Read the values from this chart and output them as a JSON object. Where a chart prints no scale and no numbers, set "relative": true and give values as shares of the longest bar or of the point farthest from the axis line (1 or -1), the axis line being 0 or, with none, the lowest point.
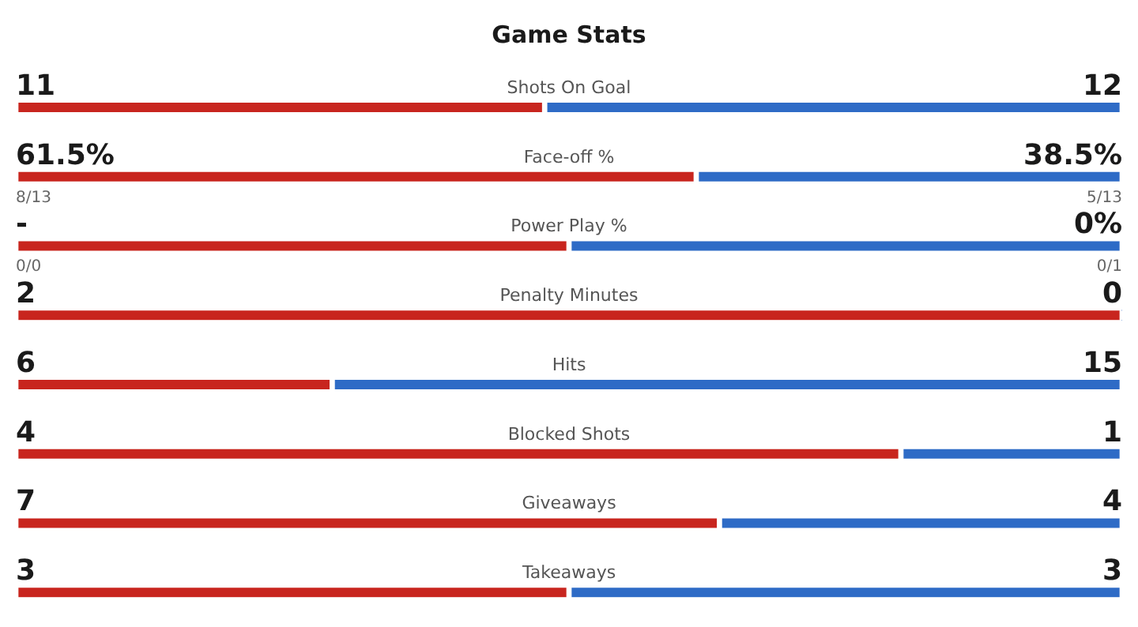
{
  "chart_data": {
    "type": "bar",
    "title": "Game Stats",
    "orientation": "horizontal",
    "stacked": true,
    "relative": true,
    "categories": [
      "Shots On Goal",
      "Face-off %",
      "Power Play %",
      "Penalty Minutes",
      "Hits",
      "Blocked Shots",
      "Giveaways",
      "Takeaways"
    ],
    "series": [
      {
        "color": "#c8251e",
        "values": [
          0.478,
          0.615,
          0.5,
          1,
          0.286,
          0.8,
          0.636,
          0.5
        ]
      },
      {
        "color": "#2e6bc6",
        "values": [
          0.522,
          0.385,
          0.5,
          0,
          0.714,
          0.2,
          0.364,
          0.5
        ]
      }
    ],
    "annotations": [
      {
        "text": "11",
        "y": "Shots On Goal"
      },
      {
        "text": "12",
        "y": "Shots On Goal"
      },
      {
        "text": "61.5%",
        "y": "Face-off %"
      },
      {
        "text": "38.5%",
        "y": "Face-off %"
      },
      {
        "text": "8/13",
        "y": "Face-off %"
      },
      {
        "text": "5/13",
        "y": "Face-off %"
      },
      {
        "text": "-",
        "y": "Power Play %"
      },
      {
        "text": "0%",
        "y": "Power Play %"
      },
      {
        "text": "0/0",
        "y": "Power Play %"
      },
      {
        "text": "0/1",
        "y": "Power Play %"
      },
      {
        "text": "2",
        "y": "Penalty Minutes"
      },
      {
        "text": "0",
        "y": "Penalty Minutes"
      },
      {
        "text": "6",
        "y": "Hits"
      },
      {
        "text": "15",
        "y": "Hits"
      },
      {
        "text": "4",
        "y": "Blocked Shots"
      },
      {
        "text": "1",
        "y": "Blocked Shots"
      },
      {
        "text": "7",
        "y": "Giveaways"
      },
      {
        "text": "4",
        "y": "Giveaways"
      },
      {
        "text": "3",
        "y": "Takeaways"
      },
      {
        "text": "3",
        "y": "Takeaways"
      }
    ]
  }
}
